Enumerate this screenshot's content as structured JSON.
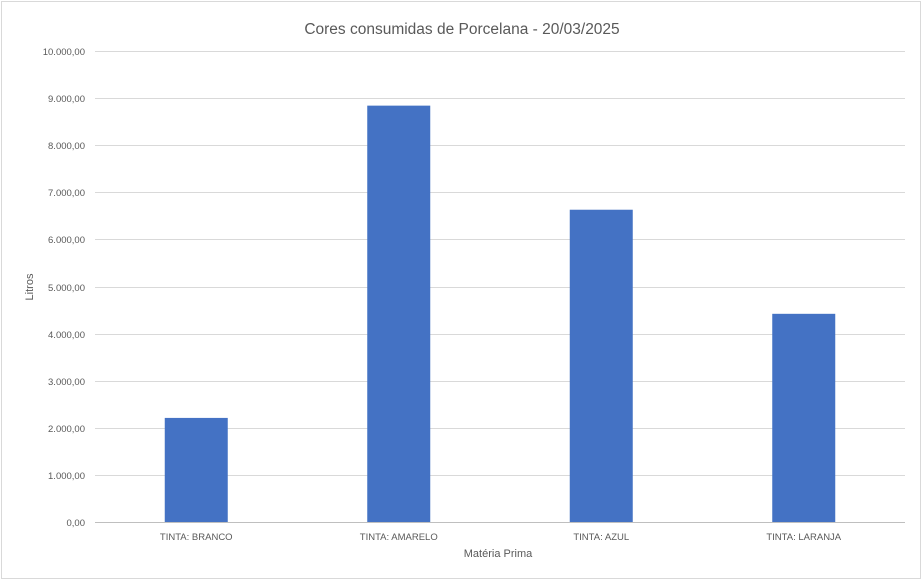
{
  "chart_data": {
    "type": "bar",
    "title": "Cores consumidas de Porcelana - 20/03/2025",
    "xlabel": "Matéria Prima",
    "ylabel": "Litros",
    "categories": [
      "TINTA: BRANCO",
      "TINTA: AMARELO",
      "TINTA: AZUL",
      "TINTA: LARANJA"
    ],
    "series": [
      {
        "values": [
          2210,
          8840,
          6630,
          4420
        ]
      }
    ],
    "ylim": [
      0,
      10000
    ],
    "yticks": [
      0,
      1000,
      2000,
      3000,
      4000,
      5000,
      6000,
      7000,
      8000,
      9000,
      10000
    ],
    "ytick_labels": [
      "0,00",
      "1.000,00",
      "2.000,00",
      "3.000,00",
      "4.000,00",
      "5.000,00",
      "6.000,00",
      "7.000,00",
      "8.000,00",
      "9.000,00",
      "10.000,00"
    ],
    "grid": true,
    "legend": "none",
    "bar_color": "#4472c4"
  }
}
